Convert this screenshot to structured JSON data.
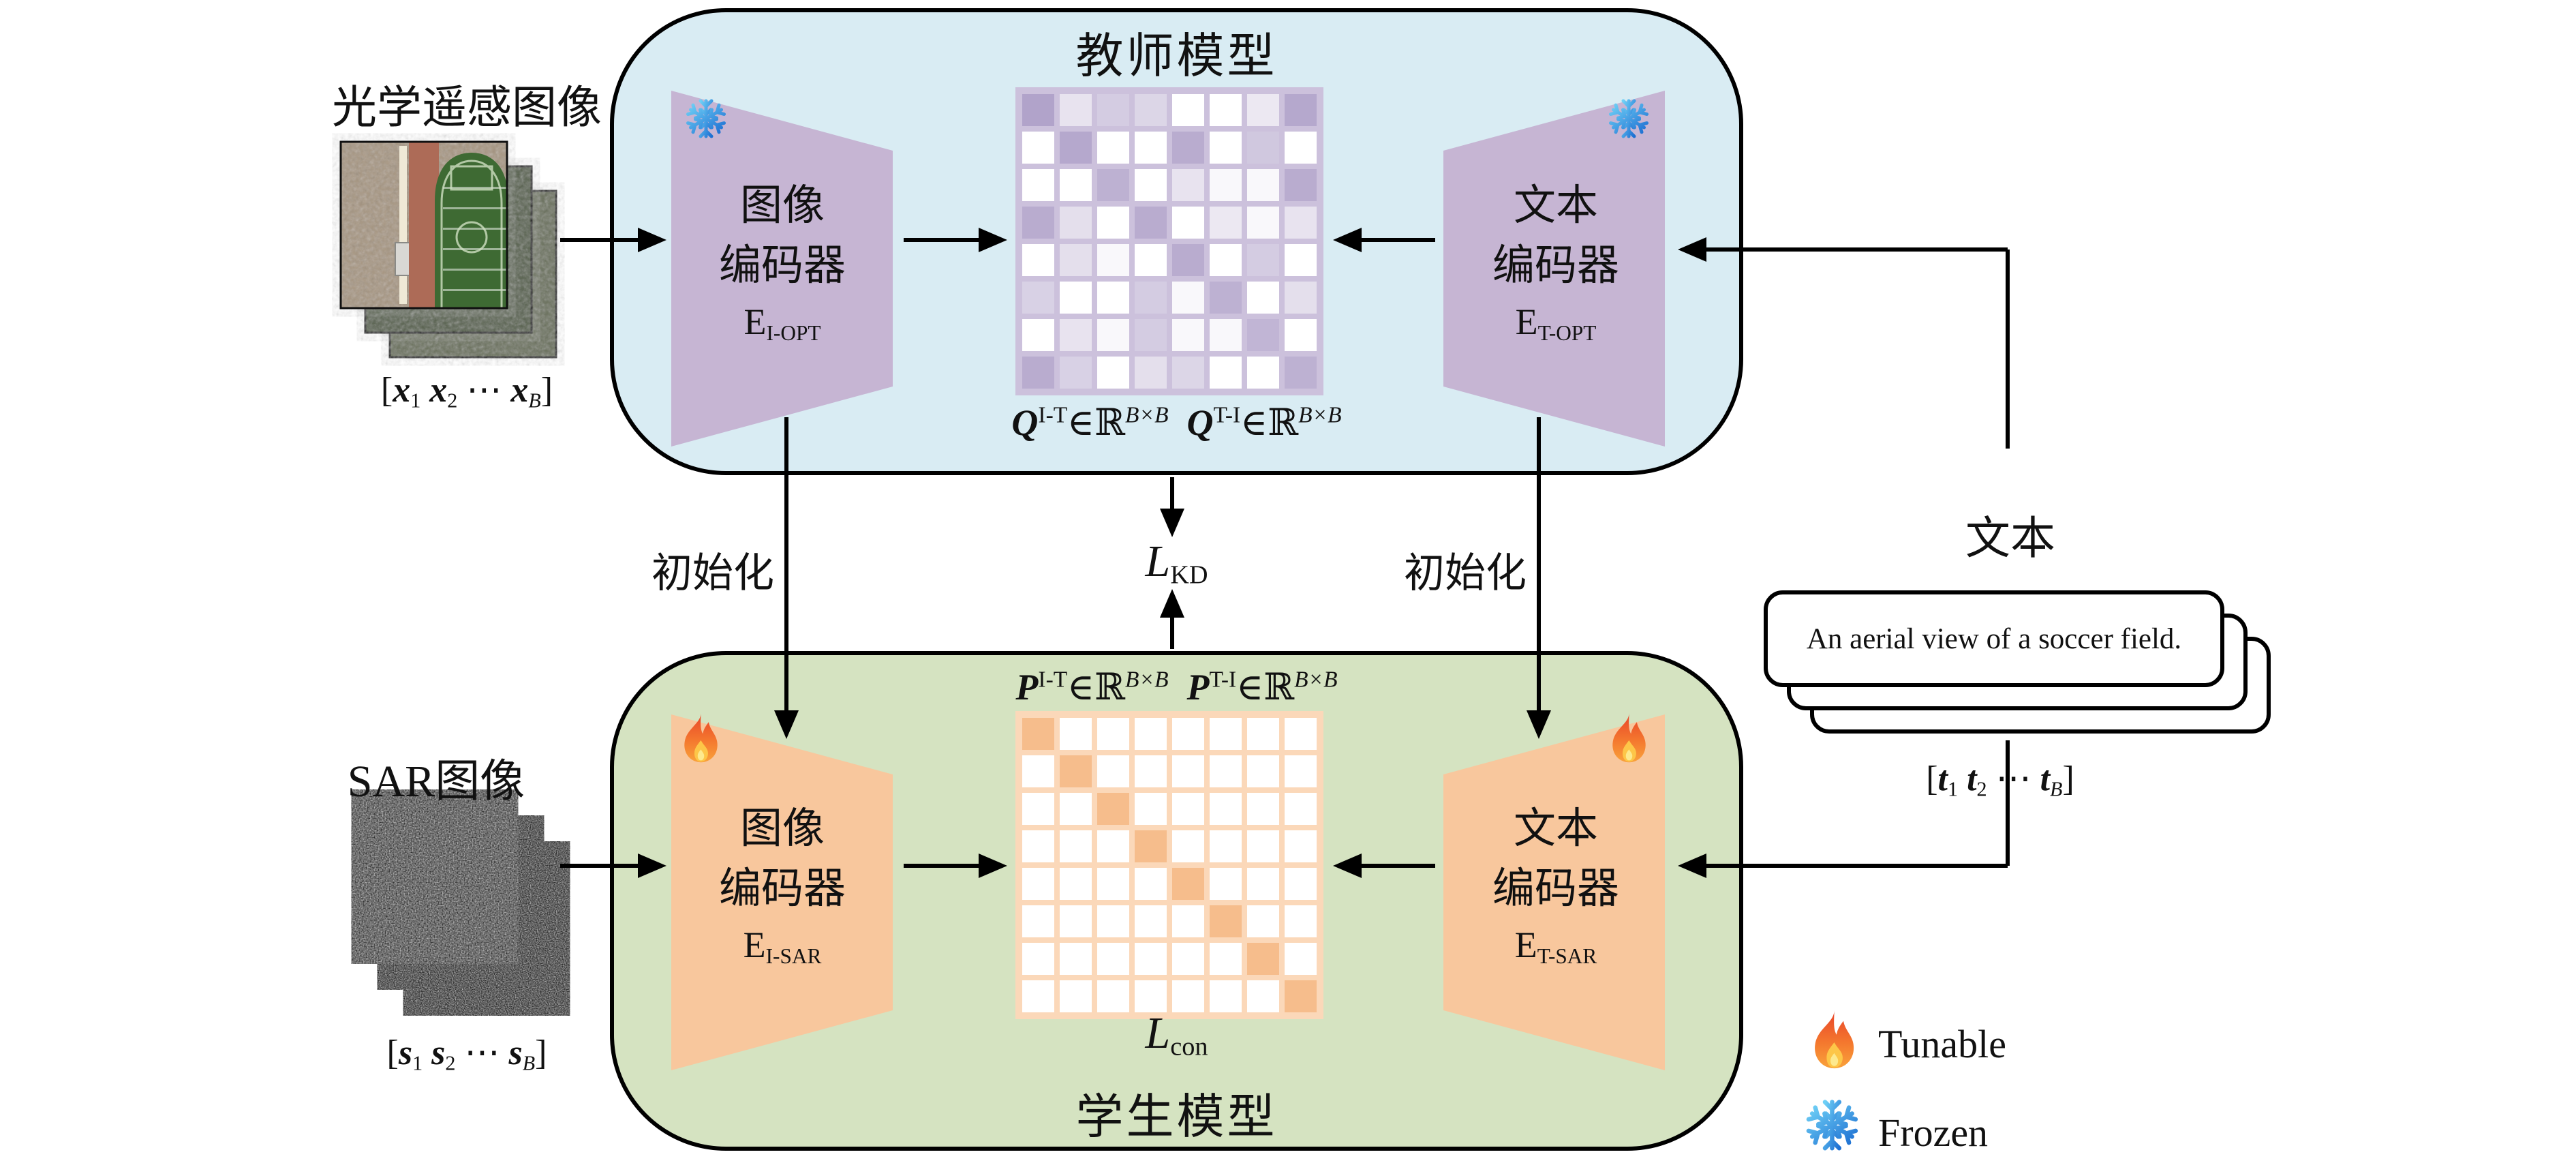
{
  "colors": {
    "teacher_box_bg": "#d9ecf3",
    "student_box_bg": "#d5e3c1",
    "encoder_frozen_fill": "#c6b5d3",
    "encoder_tunable_fill": "#f8c79d",
    "teacher_matrix_base_hex": "#b1a3ca",
    "teacher_matrix_gap": "#ccc1dc",
    "student_matrix_base_hex": "#f6bd8c",
    "student_matrix_gap": "#fbd8b9",
    "flame_color": "#f4772e",
    "snowflake_color": "#37a2ea",
    "arrow_color": "#000000"
  },
  "teacher": {
    "title": "教师模型",
    "image_encoder": {
      "line1": "图像",
      "line2": "编码器",
      "symbol": [
        [
          "E",
          ""
        ],
        [
          "I-OPT",
          "sub"
        ]
      ],
      "status": "frozen"
    },
    "text_encoder": {
      "line1": "文本",
      "line2": "编码器",
      "symbol": [
        [
          "E",
          ""
        ],
        [
          "T-OPT",
          "sub"
        ]
      ],
      "status": "frozen"
    },
    "similarity_label": [
      [
        "Q",
        "bi"
      ],
      [
        "I-T",
        "sup"
      ],
      [
        "∈",
        ""
      ],
      [
        "ℝ",
        ""
      ],
      [
        "B×B",
        "supi"
      ],
      [
        "  ",
        ""
      ],
      [
        "Q",
        "bi"
      ],
      [
        "T-I",
        "sup"
      ],
      [
        "∈",
        ""
      ],
      [
        "ℝ",
        ""
      ],
      [
        "B×B",
        "supi"
      ]
    ],
    "matrix": {
      "rows": 8,
      "cols": 8,
      "base_rgb": [
        177,
        163,
        202
      ],
      "values": [
        [
          1,
          0.3,
          0.55,
          0.45,
          0,
          0,
          0.25,
          0.95
        ],
        [
          0,
          0.95,
          0,
          0,
          0.9,
          0,
          0.6,
          0
        ],
        [
          0,
          0,
          0.85,
          0,
          0.3,
          0.08,
          0.08,
          0.9
        ],
        [
          0.9,
          0.35,
          0,
          0.9,
          0,
          0.25,
          0.08,
          0.3
        ],
        [
          0,
          0.35,
          0.08,
          0,
          0.9,
          0,
          0.55,
          0
        ],
        [
          0.5,
          0,
          0,
          0.55,
          0.08,
          0.85,
          0,
          0.35
        ],
        [
          0,
          0.3,
          0.08,
          0.55,
          0.08,
          0.08,
          0.8,
          0
        ],
        [
          0.9,
          0.5,
          0,
          0.35,
          0.45,
          0,
          0,
          0.85
        ]
      ]
    }
  },
  "student": {
    "title": "学生模型",
    "image_encoder": {
      "line1": "图像",
      "line2": "编码器",
      "symbol": [
        [
          "E",
          ""
        ],
        [
          "I-SAR",
          "sub"
        ]
      ],
      "status": "tunable"
    },
    "text_encoder": {
      "line1": "文本",
      "line2": "编码器",
      "symbol": [
        [
          "E",
          ""
        ],
        [
          "T-SAR",
          "sub"
        ]
      ],
      "status": "tunable"
    },
    "similarity_label": [
      [
        "P",
        "bi"
      ],
      [
        "I-T",
        "sup"
      ],
      [
        "∈",
        ""
      ],
      [
        "ℝ",
        ""
      ],
      [
        "B×B",
        "supi"
      ],
      [
        "  ",
        ""
      ],
      [
        "P",
        "bi"
      ],
      [
        "T-I",
        "sup"
      ],
      [
        "∈",
        ""
      ],
      [
        "ℝ",
        ""
      ],
      [
        "B×B",
        "supi"
      ]
    ],
    "matrix": {
      "rows": 8,
      "cols": 8,
      "base_rgb": [
        246,
        189,
        140
      ],
      "values": [
        [
          1,
          0,
          0,
          0,
          0,
          0,
          0,
          0
        ],
        [
          0,
          1,
          0,
          0,
          0,
          0,
          0,
          0
        ],
        [
          0,
          0,
          1,
          0,
          0,
          0,
          0,
          0
        ],
        [
          0,
          0,
          0,
          1,
          0,
          0,
          0,
          0
        ],
        [
          0,
          0,
          0,
          0,
          1,
          0,
          0,
          0
        ],
        [
          0,
          0,
          0,
          0,
          0,
          1,
          0,
          0
        ],
        [
          0,
          0,
          0,
          0,
          0,
          0,
          1,
          0
        ],
        [
          0,
          0,
          0,
          0,
          0,
          0,
          0,
          1
        ]
      ]
    }
  },
  "losses": {
    "kd": [
      [
        "L",
        "i"
      ],
      [
        "KD",
        "sub"
      ]
    ],
    "con": [
      [
        "L",
        "i"
      ],
      [
        "con",
        "sub"
      ]
    ]
  },
  "init_label_left": "初始化",
  "init_label_right": "初始化",
  "inputs": {
    "optical": {
      "label": "光学遥感图像",
      "batch": [
        [
          "[",
          ""
        ],
        [
          "x",
          "bi"
        ],
        [
          "1",
          "sub"
        ],
        [
          " ",
          ""
        ],
        [
          "x",
          "bi"
        ],
        [
          "2",
          "sub"
        ],
        [
          " ⋯ ",
          ""
        ],
        [
          "x",
          "bi"
        ],
        [
          "B",
          "subi"
        ],
        [
          "]",
          ""
        ]
      ]
    },
    "sar": {
      "label": "SAR图像",
      "batch": [
        [
          "[",
          ""
        ],
        [
          "s",
          "bi"
        ],
        [
          "1",
          "sub"
        ],
        [
          " ",
          ""
        ],
        [
          "s",
          "bi"
        ],
        [
          "2",
          "sub"
        ],
        [
          " ⋯ ",
          ""
        ],
        [
          "s",
          "bi"
        ],
        [
          "B",
          "subi"
        ],
        [
          "]",
          ""
        ]
      ]
    },
    "text": {
      "label": "文本",
      "caption": "An aerial view of a soccer field.",
      "batch": [
        [
          "[",
          ""
        ],
        [
          "t",
          "bi"
        ],
        [
          "1",
          "sub"
        ],
        [
          " ",
          ""
        ],
        [
          "t",
          "bi"
        ],
        [
          "2",
          "sub"
        ],
        [
          " ⋯ ",
          ""
        ],
        [
          "t",
          "bi"
        ],
        [
          "B",
          "subi"
        ],
        [
          "]",
          ""
        ]
      ]
    }
  },
  "legend": {
    "tunable": "Tunable",
    "frozen": "Frozen"
  }
}
